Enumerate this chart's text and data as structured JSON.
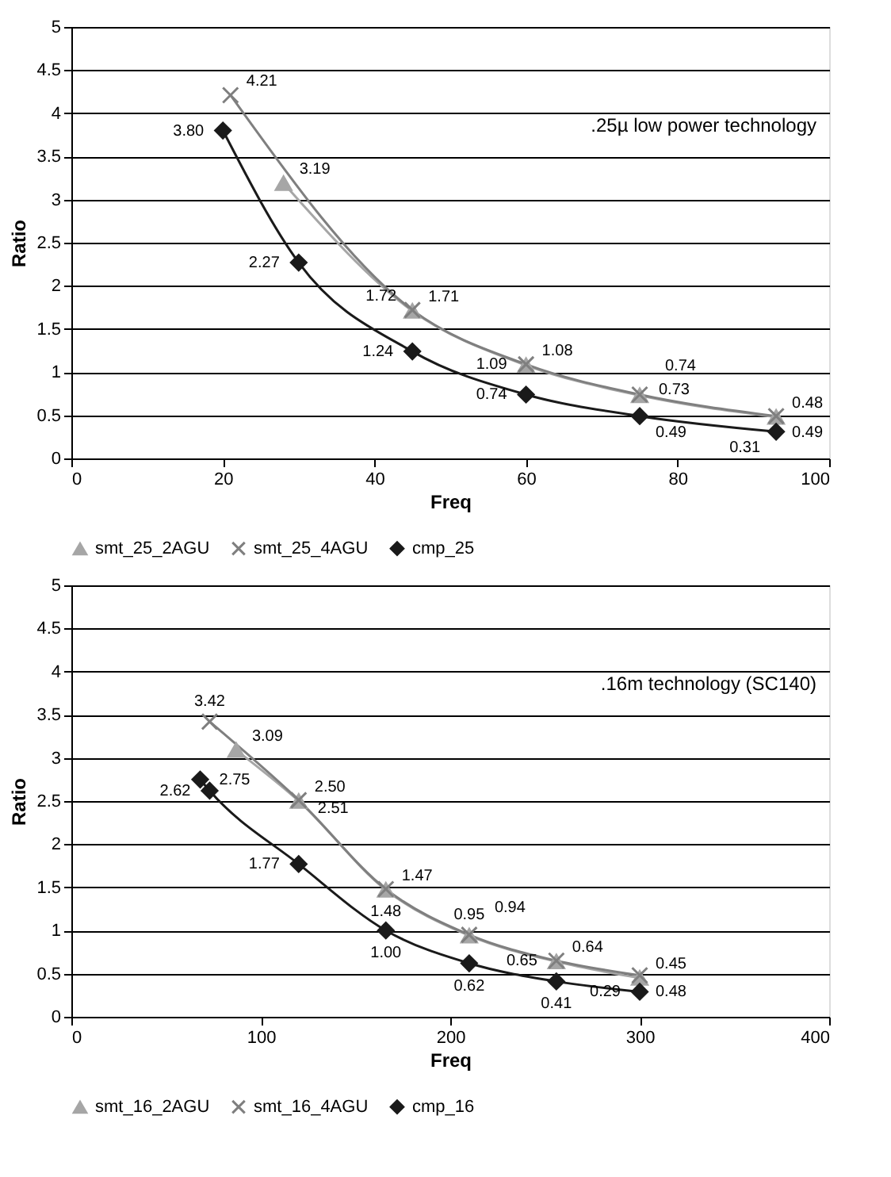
{
  "chart_data": [
    {
      "type": "line",
      "xlabel": "Freq",
      "ylabel": "Ratio",
      "xlim": [
        0,
        100
      ],
      "xticks": [
        0,
        20,
        40,
        60,
        80,
        100
      ],
      "ylim": [
        0,
        5
      ],
      "yticks": [
        0,
        0.5,
        1,
        1.5,
        2,
        2.5,
        3,
        3.5,
        4,
        4.5,
        5
      ],
      "grid": "y",
      "legend": "bottom",
      "data_labels": true,
      "annotations": [
        ".25µ low power technology"
      ],
      "series": [
        {
          "name": "smt_25_2AGU",
          "color": "#a6a6a6",
          "marker": "triangle",
          "x": [
            28,
            45,
            60,
            75,
            93
          ],
          "values": [
            3.19,
            1.71,
            1.08,
            0.73,
            0.48
          ]
        },
        {
          "name": "smt_25_4AGU",
          "color": "#7f7f7f",
          "marker": "cross",
          "x": [
            21,
            45,
            60,
            75,
            93
          ],
          "values": [
            4.21,
            1.72,
            1.09,
            0.74,
            0.49
          ]
        },
        {
          "name": "cmp_25",
          "color": "#1a1a1a",
          "marker": "diamond",
          "x": [
            20,
            30,
            45,
            60,
            75,
            93
          ],
          "values": [
            3.8,
            2.27,
            1.24,
            0.74,
            0.49,
            0.31
          ],
          "value_labels": [
            "3.80",
            "2.27",
            "1.24",
            "0.74",
            "0.49",
            "0.31"
          ]
        }
      ]
    },
    {
      "type": "line",
      "xlabel": "Freq",
      "ylabel": "Ratio",
      "xlim": [
        0,
        400
      ],
      "xticks": [
        0,
        100,
        200,
        300,
        400
      ],
      "ylim": [
        0,
        5
      ],
      "yticks": [
        0,
        0.5,
        1,
        1.5,
        2,
        2.5,
        3,
        3.5,
        4,
        4.5,
        5
      ],
      "grid": "y",
      "legend": "bottom",
      "data_labels": true,
      "annotations": [
        ".16m technology (SC140)"
      ],
      "series": [
        {
          "name": "smt_16_2AGU",
          "color": "#a6a6a6",
          "marker": "triangle",
          "x": [
            87,
            120,
            166,
            210,
            256,
            300
          ],
          "values": [
            3.09,
            2.5,
            1.47,
            0.94,
            0.64,
            0.45
          ],
          "value_labels": [
            "3.09",
            "2.50",
            "1.47",
            "0.94",
            "0.64",
            "0.45"
          ]
        },
        {
          "name": "smt_16_4AGU",
          "color": "#7f7f7f",
          "marker": "cross",
          "x": [
            73,
            120,
            166,
            210,
            256,
            300
          ],
          "values": [
            3.42,
            2.51,
            1.48,
            0.95,
            0.65,
            0.48
          ]
        },
        {
          "name": "cmp_16",
          "color": "#1a1a1a",
          "marker": "diamond",
          "x": [
            68,
            73,
            120,
            166,
            210,
            256,
            300
          ],
          "values": [
            2.75,
            2.62,
            1.77,
            1.0,
            0.62,
            0.41,
            0.29
          ],
          "value_labels": [
            "2.75",
            "2.62",
            "1.77",
            "1.00",
            "0.62",
            "0.41",
            "0.29"
          ]
        }
      ]
    }
  ]
}
